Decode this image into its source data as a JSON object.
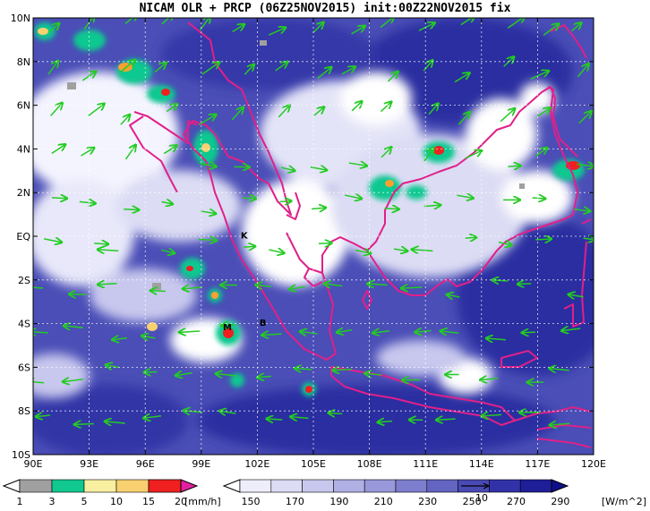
{
  "title": "NICAM OLR + PRCP (06Z25NOV2015) init:00Z22NOV2015 fix",
  "map": {
    "lon_labels": [
      "90E",
      "93E",
      "96E",
      "99E",
      "102E",
      "105E",
      "108E",
      "111E",
      "114E",
      "117E",
      "120E"
    ],
    "lat_labels": [
      "10N",
      "8N",
      "6N",
      "4N",
      "2N",
      "EQ",
      "2S",
      "4S",
      "6S",
      "8S",
      "10S"
    ],
    "lon_range": [
      90,
      120
    ],
    "lat_range": [
      -10,
      10
    ],
    "gridlines": "dotted",
    "colors": {
      "ocean_deep": "#2a2ea0",
      "ocean_mid": "#5a5ec0",
      "cloud": "#ffffff",
      "coastline": "#e0208a",
      "vectors": "#22cc22"
    }
  },
  "towns": [
    {
      "label": "K",
      "lon": 101.3,
      "lat": -0.1
    },
    {
      "label": "M",
      "lon": 100.4,
      "lat": -4.3
    },
    {
      "label": "B",
      "lon": 102.3,
      "lat": -4.1
    }
  ],
  "precip_legend": {
    "ticks": [
      "1",
      "3",
      "5",
      "10",
      "15",
      "20"
    ],
    "unit": "[mm/h]",
    "colors": [
      "#a0a0a0",
      "#10c890",
      "#f8f0a0",
      "#f8d070",
      "#f8a030",
      "#f02020",
      "#e020a0"
    ]
  },
  "olr_legend": {
    "ticks": [
      "150",
      "170",
      "190",
      "210",
      "230",
      "250",
      "270",
      "290"
    ],
    "unit": "[W/m^2]",
    "colors": [
      "#ffffff",
      "#eeeefa",
      "#dcdcf4",
      "#c8c8ee",
      "#b0b0e4",
      "#9898da",
      "#7e7ece",
      "#6464c2",
      "#4a4ab4",
      "#3232a8",
      "#1e1e98",
      "#10108a"
    ],
    "ref_vector_label": "10"
  }
}
